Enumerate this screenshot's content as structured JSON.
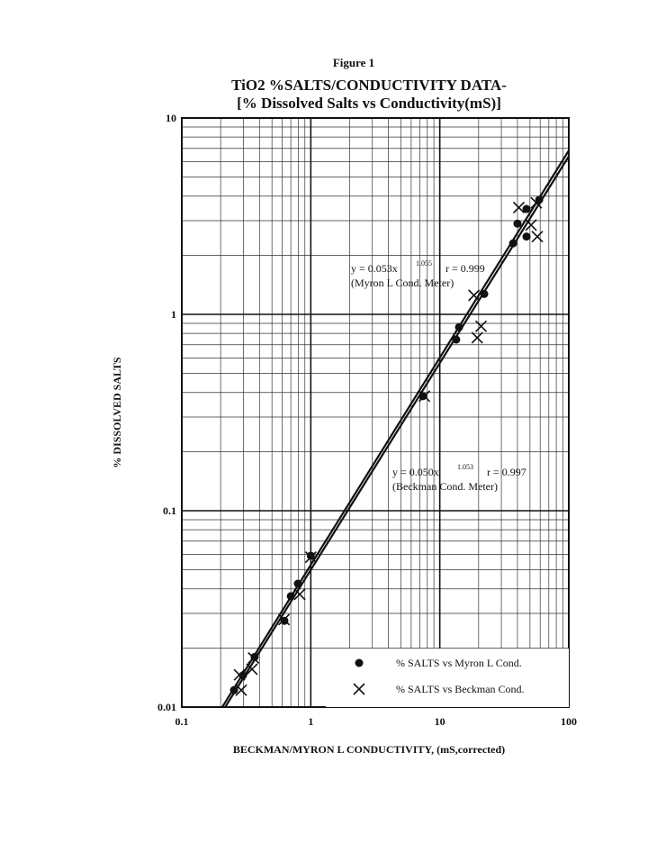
{
  "chart_data": {
    "type": "scatter",
    "title": "Figure 1",
    "subtitle": "TiO2 %SALTS/CONDUCTIVITY DATA-",
    "subtitle2": "[% Dissolved Salts vs  Conductivity(mS)]",
    "x_label": "BECKMAN/MYRON L CONDUCTIVITY, (mS,corrected)",
    "y_label": "% DISSOLVED SALTS",
    "xscale": "log",
    "yscale": "log",
    "grid": true,
    "xlim": [
      0.1,
      100
    ],
    "ylim": [
      0.01,
      10
    ],
    "xticks": [
      0.1,
      1,
      10,
      100
    ],
    "yticks": [
      0.01,
      0.1,
      1,
      10
    ],
    "legend": "lower right",
    "series": [
      {
        "name": "% SALTS vs Myron L Cond.",
        "marker": "dot",
        "color": "#111111",
        "x": [
          0.254,
          0.298,
          0.367,
          0.624,
          0.7,
          0.794,
          1.0,
          7.4,
          13.4,
          14.1,
          22.1,
          37,
          40,
          47,
          47,
          59
        ],
        "values": [
          0.0122,
          0.0145,
          0.018,
          0.0275,
          0.0367,
          0.0425,
          0.059,
          0.383,
          0.744,
          0.86,
          1.27,
          2.3,
          2.9,
          3.44,
          2.49,
          3.83
        ]
      },
      {
        "name": "% SALTS vs Beckman Cond.",
        "marker": "x",
        "color": "#111111",
        "x": [
          0.289,
          0.28,
          0.36,
          0.35,
          0.62,
          0.82,
          1.0,
          7.6,
          18.4,
          19.5,
          20.9,
          41,
          51,
          57,
          56
        ],
        "values": [
          0.0122,
          0.0146,
          0.0178,
          0.0156,
          0.0279,
          0.0375,
          0.058,
          0.383,
          1.25,
          0.76,
          0.87,
          3.5,
          2.85,
          2.49,
          3.7
        ]
      }
    ],
    "fits": [
      {
        "a": 0.053,
        "b": 1.055,
        "equation": "y = 0.053x",
        "exponent": "1.055",
        "r": "r = 0.999",
        "note": "(Myron L Cond. Meter)"
      },
      {
        "a": 0.05,
        "b": 1.053,
        "equation": "y = 0.050x",
        "exponent": "1.053",
        "r": "r = 0.997",
        "note": "(Beckman Cond. Meter)"
      }
    ]
  }
}
